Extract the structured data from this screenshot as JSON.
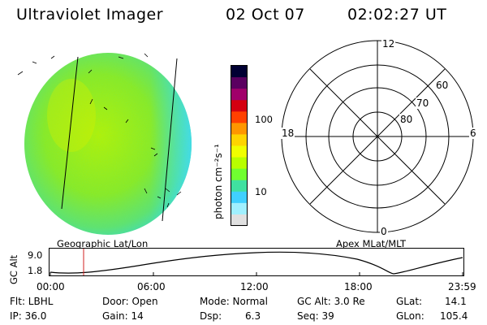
{
  "header": {
    "title": "Ultraviolet Imager",
    "date": "02 Oct 07",
    "time": "02:02:27 UT"
  },
  "colorbar": {
    "label": "photon cm⁻²s⁻¹",
    "ticks": [
      "100",
      "10"
    ],
    "colors": [
      "#000033",
      "#5a0060",
      "#a0006a",
      "#d40010",
      "#ff4000",
      "#ff9600",
      "#ffd400",
      "#f0ff00",
      "#b8ff00",
      "#70ff30",
      "#40e0a0",
      "#40d0ff",
      "#a0f0ff",
      "#e0e0e0"
    ]
  },
  "map_labels": {
    "left": "Geographic Lat/Lon",
    "right": "Apex MLat/MLT"
  },
  "polar": {
    "top": "12",
    "bottom": "0",
    "left": "18",
    "right": "6",
    "lat_labels": [
      "60",
      "70",
      "80"
    ]
  },
  "altitude_plot": {
    "ylabel": "GC Alt",
    "yticks": [
      "9.0",
      "1.8"
    ],
    "xticks": [
      "00:00",
      "06:00",
      "12:00",
      "18:00",
      "23:59"
    ]
  },
  "info": {
    "flt": "Flt: LBHL",
    "ip": "IP: 36.0",
    "door": "Door: Open",
    "gain": "Gain: 14",
    "mode": "Mode: Normal",
    "dsp_label": "Dsp:",
    "dsp_value": "6.3",
    "gc_alt": "GC Alt: 3.0 Re",
    "seq": "Seq: 39",
    "glat_label": "GLat:",
    "glat_value": "14.1",
    "glon_label": "GLon:",
    "glon_value": "105.4"
  }
}
